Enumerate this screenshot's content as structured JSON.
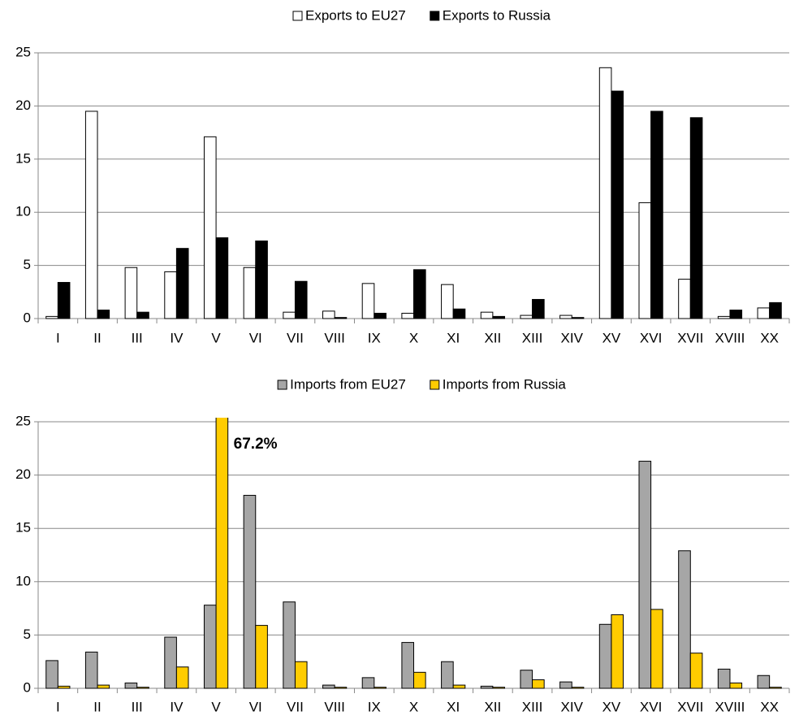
{
  "chart_data": [
    {
      "type": "bar",
      "categories": [
        "I",
        "II",
        "III",
        "IV",
        "V",
        "VI",
        "VII",
        "VIII",
        "IX",
        "X",
        "XI",
        "XII",
        "XIII",
        "XIV",
        "XV",
        "XVI",
        "XVII",
        "XVIII",
        "XX"
      ],
      "series": [
        {
          "name": "Exports to EU27",
          "color": "#ffffff",
          "values": [
            0.2,
            19.5,
            4.8,
            4.4,
            17.1,
            4.8,
            0.6,
            0.7,
            3.3,
            0.5,
            3.2,
            0.6,
            0.3,
            0.3,
            23.6,
            10.9,
            3.7,
            0.2,
            1.0
          ]
        },
        {
          "name": "Exports to Russia",
          "color": "#000000",
          "values": [
            3.4,
            0.8,
            0.6,
            6.6,
            7.6,
            7.3,
            3.5,
            0.1,
            0.5,
            4.6,
            0.9,
            0.2,
            1.8,
            0.1,
            21.4,
            19.5,
            18.9,
            0.8,
            1.5
          ]
        }
      ],
      "ylim": [
        0,
        25
      ],
      "yticks": [
        0,
        5,
        10,
        15,
        20,
        25
      ],
      "grid": true,
      "legend": "top"
    },
    {
      "type": "bar",
      "categories": [
        "I",
        "II",
        "III",
        "IV",
        "V",
        "VI",
        "VII",
        "VIII",
        "IX",
        "X",
        "XI",
        "XII",
        "XIII",
        "XIV",
        "XV",
        "XVI",
        "XVII",
        "XVIII",
        "XX"
      ],
      "series": [
        {
          "name": "Imports from EU27",
          "color": "#a6a6a6",
          "values": [
            2.6,
            3.4,
            0.5,
            4.8,
            7.8,
            18.1,
            8.1,
            0.3,
            1.0,
            4.3,
            2.5,
            0.2,
            1.7,
            0.6,
            6.0,
            21.3,
            12.9,
            1.8,
            1.2
          ]
        },
        {
          "name": "Imports from Russia",
          "color": "#ffcc00",
          "values": [
            0.2,
            0.3,
            0.1,
            2.0,
            67.2,
            5.9,
            2.5,
            0.1,
            0.1,
            1.5,
            0.3,
            0.1,
            0.8,
            0.1,
            6.9,
            7.4,
            3.3,
            0.5,
            0.1
          ],
          "value_labels": [
            null,
            null,
            null,
            null,
            "67.2%",
            null,
            null,
            null,
            null,
            null,
            null,
            null,
            null,
            null,
            null,
            null,
            null,
            null,
            null
          ]
        }
      ],
      "ylim": [
        0,
        25
      ],
      "yticks": [
        0,
        5,
        10,
        15,
        20,
        25
      ],
      "grid": true,
      "legend": "top"
    }
  ]
}
